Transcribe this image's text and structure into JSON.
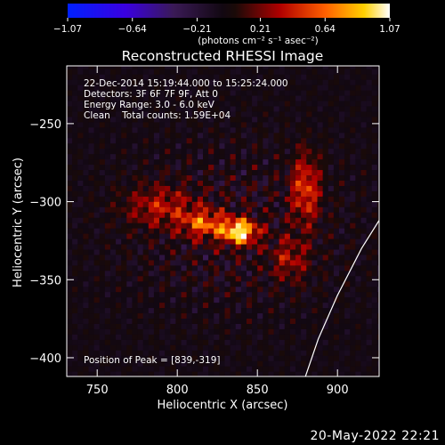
{
  "chart_data": {
    "type": "heatmap",
    "title": "Reconstructed RHESSI Image",
    "xlabel": "Heliocentric X (arcsec)",
    "ylabel": "Heliocentric Y (arcsec)",
    "xlim": [
      731,
      926
    ],
    "ylim": [
      -412,
      -213
    ],
    "x_ticks": [
      750,
      800,
      850,
      900
    ],
    "x_tick_labels": [
      "750",
      "800",
      "850",
      "900"
    ],
    "y_ticks": [
      -250,
      -300,
      -350,
      -400
    ],
    "y_tick_labels": [
      "−250",
      "−300",
      "−350",
      "−400"
    ],
    "colorbar": {
      "min": -1.07,
      "max": 1.07,
      "ticks": [
        -1.07,
        -0.64,
        -0.21,
        0.21,
        0.64,
        1.07
      ],
      "tick_labels": [
        "−1.07",
        "−0.64",
        "−0.21",
        "0.21",
        "0.64",
        "1.07"
      ],
      "label": "(photons cm⁻² s⁻¹ asec⁻²)"
    },
    "annotations": [
      "22-Dec-2014 15:19:44.000 to 15:25:24.000",
      "Detectors: 3F 6F 7F 9F, Att 0",
      "Energy Range: 3.0 - 6.0 keV",
      "Clean    Total counts: 1.59E+04"
    ],
    "peak_label": "Position of Peak = [839,-319]",
    "peak": {
      "x": 839,
      "y": -319,
      "value": 1.07
    },
    "sources": [
      {
        "x": 839,
        "y": -319,
        "peak": 1.07
      },
      {
        "x": 817,
        "y": -314,
        "peak": 0.62
      },
      {
        "x": 790,
        "y": -303,
        "peak": 0.4
      },
      {
        "x": 880,
        "y": -292,
        "peak": 0.55
      },
      {
        "x": 870,
        "y": -336,
        "peak": 0.35
      }
    ],
    "limb_points": [
      [
        926,
        -312
      ],
      [
        915,
        -330
      ],
      [
        900,
        -360
      ],
      [
        888,
        -388
      ],
      [
        880,
        -412
      ]
    ]
  },
  "footer": {
    "date": "20-May-2022 22:21"
  }
}
